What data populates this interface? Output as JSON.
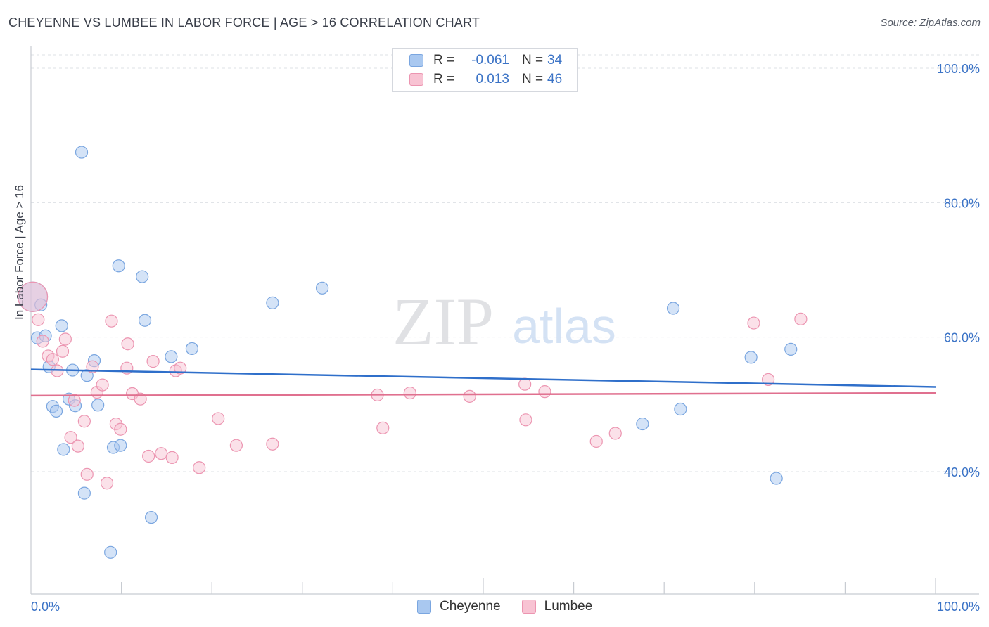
{
  "header": {
    "title": "CHEYENNE VS LUMBEE IN LABOR FORCE | AGE > 16 CORRELATION CHART",
    "source": "Source: ZipAtlas.com"
  },
  "watermark": {
    "zip": "ZIP",
    "atlas": "atlas"
  },
  "legend_top": {
    "rows": [
      {
        "r_label": "R =",
        "r_value": "-0.061",
        "n_label": "N =",
        "n_value": "34",
        "color": "#a9c8f0",
        "border": "#7aa6e0"
      },
      {
        "r_label": "R =",
        "r_value": "0.013",
        "n_label": "N =",
        "n_value": "46",
        "color": "#f8c3d3",
        "border": "#ec95b1"
      }
    ]
  },
  "legend_bottom": {
    "items": [
      {
        "label": "Cheyenne",
        "color": "#a9c8f0",
        "border": "#7aa6e0"
      },
      {
        "label": "Lumbee",
        "color": "#f8c3d3",
        "border": "#ec95b1"
      }
    ]
  },
  "chart_data": {
    "type": "scatter",
    "title": "CHEYENNE VS LUMBEE IN LABOR FORCE | AGE > 16 CORRELATION CHART",
    "xlabel": "",
    "ylabel": "In Labor Force | Age > 16",
    "xlim": [
      0,
      100
    ],
    "ylim": [
      22,
      102
    ],
    "x_tick_labels": [
      "0.0%",
      "100.0%"
    ],
    "y_ticks": [
      40,
      60,
      80,
      100
    ],
    "y_tick_labels": [
      "40.0%",
      "60.0%",
      "80.0%",
      "100.0%"
    ],
    "grid": true,
    "legend_position": "top-center",
    "series": [
      {
        "name": "Cheyenne",
        "color": "#a9c8f0",
        "stroke": "#7aa6e0",
        "line_color": "#2f6fca",
        "trend": {
          "x": [
            0,
            100
          ],
          "y": [
            55.2,
            52.6
          ]
        },
        "points": [
          [
            0.2,
            66.0
          ],
          [
            1.1,
            64.8
          ],
          [
            0.7,
            59.9
          ],
          [
            1.6,
            60.2
          ],
          [
            2.0,
            55.6
          ],
          [
            2.4,
            49.7
          ],
          [
            2.8,
            49.0
          ],
          [
            3.4,
            61.7
          ],
          [
            3.6,
            43.3
          ],
          [
            4.2,
            50.8
          ],
          [
            4.6,
            55.1
          ],
          [
            4.9,
            49.8
          ],
          [
            5.6,
            87.5
          ],
          [
            5.9,
            36.8
          ],
          [
            6.2,
            54.3
          ],
          [
            7.0,
            56.5
          ],
          [
            7.4,
            49.9
          ],
          [
            8.8,
            28.0
          ],
          [
            9.1,
            43.6
          ],
          [
            9.7,
            70.6
          ],
          [
            9.9,
            43.9
          ],
          [
            12.3,
            69.0
          ],
          [
            12.6,
            62.5
          ],
          [
            13.3,
            33.2
          ],
          [
            15.5,
            57.1
          ],
          [
            17.8,
            58.3
          ],
          [
            26.7,
            65.1
          ],
          [
            32.2,
            67.3
          ],
          [
            67.6,
            47.1
          ],
          [
            71.0,
            64.3
          ],
          [
            71.8,
            49.3
          ],
          [
            79.6,
            57.0
          ],
          [
            82.4,
            39.0
          ],
          [
            84.0,
            58.2
          ]
        ]
      },
      {
        "name": "Lumbee",
        "color": "#f8c3d3",
        "stroke": "#ec95b1",
        "line_color": "#e0708f",
        "trend": {
          "x": [
            0,
            100
          ],
          "y": [
            51.3,
            51.7
          ]
        },
        "points": [
          [
            0.2,
            66.0
          ],
          [
            0.8,
            62.6
          ],
          [
            1.3,
            59.4
          ],
          [
            1.9,
            57.2
          ],
          [
            2.4,
            56.7
          ],
          [
            2.9,
            55.0
          ],
          [
            3.5,
            57.9
          ],
          [
            3.8,
            59.7
          ],
          [
            4.4,
            45.1
          ],
          [
            4.8,
            50.6
          ],
          [
            5.2,
            43.8
          ],
          [
            5.9,
            47.5
          ],
          [
            6.2,
            39.6
          ],
          [
            6.8,
            55.6
          ],
          [
            7.3,
            51.8
          ],
          [
            7.9,
            52.9
          ],
          [
            8.4,
            38.3
          ],
          [
            8.9,
            62.4
          ],
          [
            9.4,
            47.1
          ],
          [
            9.9,
            46.3
          ],
          [
            10.6,
            55.4
          ],
          [
            10.7,
            59.0
          ],
          [
            11.2,
            51.6
          ],
          [
            12.1,
            50.8
          ],
          [
            13.0,
            42.3
          ],
          [
            13.5,
            56.4
          ],
          [
            14.4,
            42.7
          ],
          [
            15.6,
            42.1
          ],
          [
            16.0,
            55.0
          ],
          [
            16.5,
            55.4
          ],
          [
            18.6,
            40.6
          ],
          [
            20.7,
            47.9
          ],
          [
            22.7,
            43.9
          ],
          [
            26.7,
            44.1
          ],
          [
            38.3,
            51.4
          ],
          [
            38.9,
            46.5
          ],
          [
            41.9,
            51.7
          ],
          [
            48.5,
            51.2
          ],
          [
            54.6,
            53.0
          ],
          [
            54.7,
            47.7
          ],
          [
            56.8,
            51.9
          ],
          [
            62.5,
            44.5
          ],
          [
            64.6,
            45.7
          ],
          [
            79.9,
            62.1
          ],
          [
            81.5,
            53.7
          ],
          [
            85.1,
            62.7
          ]
        ]
      }
    ]
  }
}
